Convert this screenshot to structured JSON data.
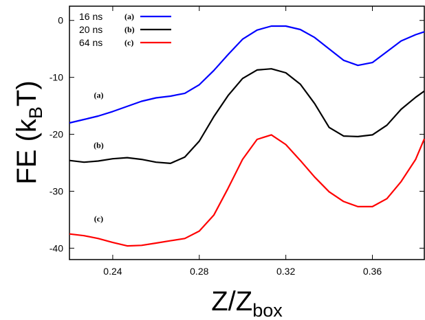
{
  "chart_data": {
    "type": "line",
    "xlabel": "Z/Z",
    "xlabel_sub": "box",
    "ylabel": "FE (k",
    "ylabel_sub": "B",
    "ylabel_end": "T)",
    "xlim": [
      0.22,
      0.384
    ],
    "ylim": [
      -42,
      2.5
    ],
    "x_ticks": [
      0.24,
      0.28,
      0.32,
      0.36
    ],
    "x_tick_labels": [
      "0.24",
      "0.28",
      "0.32",
      "0.36"
    ],
    "y_ticks": [
      0,
      -10,
      -20,
      -30,
      -40
    ],
    "y_tick_labels": [
      "0",
      "-10",
      "-20",
      "-30",
      "-40"
    ],
    "grid": false,
    "legend_position": "top-left",
    "series": [
      {
        "name": "16 ns",
        "tag": "(a)",
        "color": "#0000ff",
        "x": [
          0.22,
          0.2267,
          0.2333,
          0.24,
          0.2467,
          0.2533,
          0.26,
          0.2667,
          0.2733,
          0.28,
          0.2867,
          0.2933,
          0.3,
          0.3067,
          0.3133,
          0.32,
          0.3267,
          0.3333,
          0.34,
          0.3467,
          0.3533,
          0.36,
          0.3667,
          0.3733,
          0.38,
          0.384
        ],
        "y": [
          -18.0,
          -17.4,
          -16.8,
          -16.0,
          -15.1,
          -14.2,
          -13.6,
          -13.3,
          -12.8,
          -11.3,
          -8.8,
          -6.0,
          -3.3,
          -1.7,
          -1.0,
          -1.0,
          -1.6,
          -3.0,
          -5.0,
          -7.0,
          -7.9,
          -7.4,
          -5.5,
          -3.6,
          -2.5,
          -2.0
        ]
      },
      {
        "name": "20 ns",
        "tag": "(b)",
        "color": "#000000",
        "x": [
          0.22,
          0.2267,
          0.2333,
          0.24,
          0.2467,
          0.2533,
          0.26,
          0.2667,
          0.2733,
          0.28,
          0.2867,
          0.2933,
          0.3,
          0.3067,
          0.3133,
          0.32,
          0.3267,
          0.3333,
          0.34,
          0.3467,
          0.3533,
          0.36,
          0.3667,
          0.3733,
          0.38,
          0.384
        ],
        "y": [
          -24.6,
          -24.9,
          -24.7,
          -24.3,
          -24.1,
          -24.4,
          -24.9,
          -25.1,
          -24.0,
          -21.2,
          -16.9,
          -13.2,
          -10.2,
          -8.7,
          -8.5,
          -9.2,
          -11.2,
          -14.6,
          -18.8,
          -20.3,
          -20.4,
          -20.1,
          -18.4,
          -15.6,
          -13.5,
          -12.4
        ]
      },
      {
        "name": "64 ns",
        "tag": "(c)",
        "color": "#ff0000",
        "x": [
          0.22,
          0.2267,
          0.2333,
          0.24,
          0.2467,
          0.2533,
          0.26,
          0.2667,
          0.2733,
          0.28,
          0.2867,
          0.2933,
          0.3,
          0.3067,
          0.3133,
          0.32,
          0.3267,
          0.3333,
          0.34,
          0.3467,
          0.3533,
          0.36,
          0.3667,
          0.3733,
          0.38,
          0.384
        ],
        "y": [
          -37.5,
          -37.8,
          -38.3,
          -39.0,
          -39.6,
          -39.5,
          -39.1,
          -38.7,
          -38.3,
          -37.0,
          -34.2,
          -29.5,
          -24.4,
          -20.9,
          -20.1,
          -21.8,
          -24.6,
          -27.5,
          -30.1,
          -31.8,
          -32.7,
          -32.7,
          -31.3,
          -28.3,
          -24.4,
          -20.8
        ]
      }
    ],
    "annotations": [
      {
        "text": "(a)",
        "x": 0.2335,
        "y": -13.6
      },
      {
        "text": "(b)",
        "x": 0.2335,
        "y": -22.4
      },
      {
        "text": "(c)",
        "x": 0.2335,
        "y": -35.3
      }
    ]
  }
}
